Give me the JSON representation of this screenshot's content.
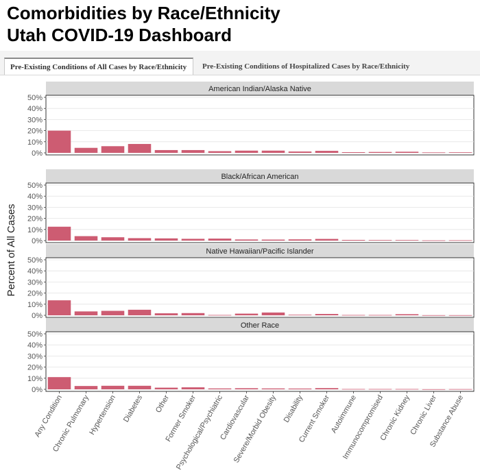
{
  "header": {
    "title_line1": "Comorbidities by Race/Ethnicity",
    "title_line2": "Utah COVID-19 Dashboard"
  },
  "tabs": [
    {
      "label": "Pre-Existing Conditions of All Cases by Race/Ethnicity",
      "active": true
    },
    {
      "label": "Pre-Existing Conditions of Hospitalized Cases by Race/Ethnicity",
      "active": false
    }
  ],
  "colors": {
    "bar": "#cd5c72",
    "strip": "#d9d9d9"
  },
  "chart_data": {
    "type": "bar",
    "ylabel": "Percent of All Cases",
    "ylim": [
      0,
      50
    ],
    "yticks": [
      0,
      10,
      20,
      30,
      40,
      50
    ],
    "ytick_labels": [
      "0%",
      "10%",
      "20%",
      "30%",
      "40%",
      "50%"
    ],
    "grid": true,
    "categories": [
      "Any Condition",
      "Chronic Pulmonary",
      "Hypertension",
      "Diabetes",
      "Other",
      "Former Smoker",
      "Psychological/Psychiatric",
      "Cardiovascular",
      "Severe/Morbid Obesity",
      "Disability",
      "Current Smoker",
      "Autoimmune",
      "Immunocompromised",
      "Chronic Kidney",
      "Chronic Liver",
      "Substance Abuse"
    ],
    "series": [
      {
        "name": "American Indian/Alaska Native",
        "values": [
          20,
          4.5,
          6,
          8,
          2.5,
          2.5,
          1.5,
          2,
          2,
          1.2,
          1.8,
          0.6,
          0.8,
          1,
          0.4,
          0.5
        ]
      },
      {
        "name": "Black/African American",
        "values": [
          12.5,
          4,
          3,
          2.2,
          2,
          1.6,
          1.8,
          1,
          0.9,
          1.1,
          1.5,
          0.6,
          0.5,
          0.5,
          0.2,
          0.3
        ]
      },
      {
        "name": "Native Hawaiian/Pacific Islander",
        "values": [
          13.5,
          3.5,
          4,
          5,
          1.8,
          2,
          0.3,
          1.5,
          2.5,
          0.5,
          1.2,
          0.3,
          0.3,
          1,
          0.1,
          0.1
        ]
      },
      {
        "name": "Other Race",
        "values": [
          11,
          3,
          3.2,
          3.2,
          1.5,
          1.8,
          0.8,
          1,
          0.8,
          0.7,
          1.1,
          0.3,
          0.3,
          0.3,
          0.1,
          0.2
        ]
      }
    ]
  }
}
